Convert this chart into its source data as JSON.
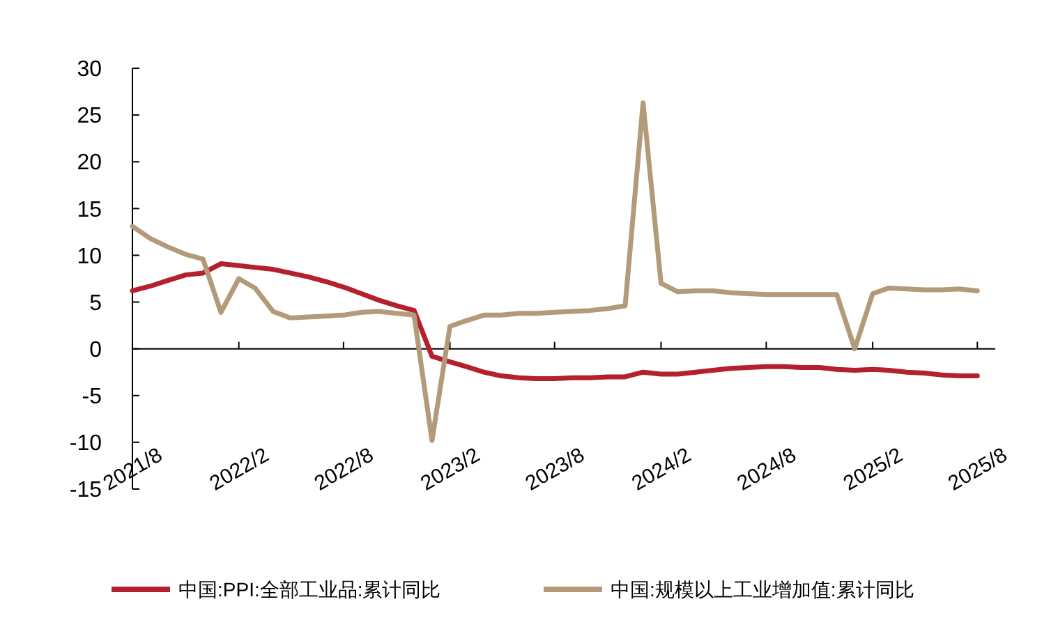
{
  "chart_data": {
    "type": "line",
    "x": [
      "2021-08",
      "2021-09",
      "2021-10",
      "2021-11",
      "2021-12",
      "2022-01",
      "2022-02",
      "2022-03",
      "2022-04",
      "2022-05",
      "2022-06",
      "2022-07",
      "2022-08",
      "2022-09",
      "2022-10",
      "2022-11",
      "2022-12",
      "2023-01",
      "2023-02",
      "2023-03",
      "2023-04",
      "2023-05",
      "2023-06",
      "2023-07",
      "2023-08",
      "2023-09",
      "2023-10",
      "2023-11",
      "2023-12",
      "2024-01",
      "2024-02",
      "2024-03",
      "2024-04",
      "2024-05",
      "2024-06",
      "2024-07",
      "2024-08",
      "2024-09",
      "2024-10",
      "2024-11",
      "2024-12",
      "2025-01",
      "2025-02",
      "2025-03",
      "2025-04",
      "2025-05",
      "2025-06",
      "2025-07",
      "2025-08"
    ],
    "series": [
      {
        "name": "中国:PPI:全部工业品:累计同比",
        "color": "#b5202e",
        "values": [
          6.2,
          6.7,
          7.3,
          7.9,
          8.1,
          9.1,
          8.9,
          8.7,
          8.5,
          8.1,
          7.7,
          7.2,
          6.6,
          5.9,
          5.2,
          4.6,
          4.1,
          -0.8,
          -1.4,
          -1.9,
          -2.5,
          -2.9,
          -3.1,
          -3.2,
          -3.2,
          -3.1,
          -3.1,
          -3.0,
          -3.0,
          -2.5,
          -2.7,
          -2.7,
          -2.5,
          -2.3,
          -2.1,
          -2.0,
          -1.9,
          -1.9,
          -2.0,
          -2.0,
          -2.2,
          -2.3,
          -2.2,
          -2.3,
          -2.5,
          -2.6,
          -2.8,
          -2.9,
          -2.9
        ]
      },
      {
        "name": "中国:规模以上工业增加值:累计同比",
        "color": "#b39b7a",
        "values": [
          13.1,
          11.8,
          10.9,
          10.1,
          9.6,
          3.9,
          7.5,
          6.5,
          4.0,
          3.3,
          3.4,
          3.5,
          3.6,
          3.9,
          4.0,
          3.8,
          3.6,
          -9.8,
          2.4,
          3.0,
          3.6,
          3.6,
          3.8,
          3.8,
          3.9,
          4.0,
          4.1,
          4.3,
          4.6,
          26.3,
          7.0,
          6.1,
          6.2,
          6.2,
          6.0,
          5.9,
          5.8,
          5.8,
          5.8,
          5.8,
          5.8,
          0,
          5.9,
          6.5,
          6.4,
          6.3,
          6.3,
          6.4,
          6.2
        ]
      }
    ],
    "xlim": [
      "2021-08",
      "2025-09"
    ],
    "xticks": [
      {
        "value": "2021-08",
        "label": "2021/8"
      },
      {
        "value": "2022-02",
        "label": "2022/2"
      },
      {
        "value": "2022-08",
        "label": "2022/8"
      },
      {
        "value": "2023-02",
        "label": "2023/2"
      },
      {
        "value": "2023-08",
        "label": "2023/8"
      },
      {
        "value": "2024-02",
        "label": "2024/2"
      },
      {
        "value": "2024-08",
        "label": "2024/8"
      },
      {
        "value": "2025-02",
        "label": "2025/2"
      },
      {
        "value": "2025-08",
        "label": "2025/8"
      }
    ],
    "ylim": [
      -15,
      30
    ],
    "yticks": [
      -15,
      -10,
      -5,
      0,
      5,
      10,
      15,
      20,
      25,
      30
    ],
    "legend": "bottom",
    "marker": "none",
    "line_style": "solid"
  }
}
